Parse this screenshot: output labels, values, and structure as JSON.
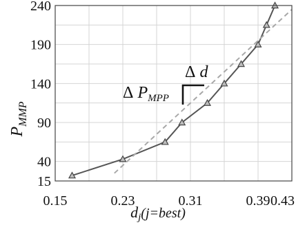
{
  "chart_data": {
    "type": "line",
    "xlabel": "d",
    "xlabel_sub": "j",
    "xlabel_paren": "(j=best)",
    "ylabel": "P",
    "ylabel_sub": "MMP",
    "xlim": [
      0.15,
      0.43
    ],
    "ylim": [
      15,
      240
    ],
    "x_ticks": [
      0.15,
      0.23,
      0.31,
      0.39,
      0.43
    ],
    "x_tick_labels": [
      "0.15",
      "0.23",
      "0.31",
      "0.39",
      "0.43"
    ],
    "y_ticks": [
      15,
      40,
      90,
      140,
      190,
      240
    ],
    "y_tick_labels": [
      "15",
      "40",
      "90",
      "140",
      "190",
      "240"
    ],
    "grid": true,
    "series": [
      {
        "style": "solid",
        "marker": "triangle",
        "color": "#555555",
        "x": [
          0.17,
          0.23,
          0.28,
          0.3,
          0.33,
          0.35,
          0.37,
          0.39,
          0.4,
          0.41
        ],
        "y": [
          22,
          43,
          65,
          90,
          115,
          140,
          165,
          190,
          215,
          240
        ]
      },
      {
        "style": "dashed",
        "color": "#a8a8a8",
        "x": [
          0.22,
          0.43
        ],
        "y": [
          25,
          235
        ]
      }
    ],
    "annotations": {
      "delta_d": {
        "prefix": "Δ",
        "symbol": "d"
      },
      "delta_p": {
        "prefix": "Δ",
        "symbol": "P",
        "subscript": "MPP"
      }
    }
  }
}
